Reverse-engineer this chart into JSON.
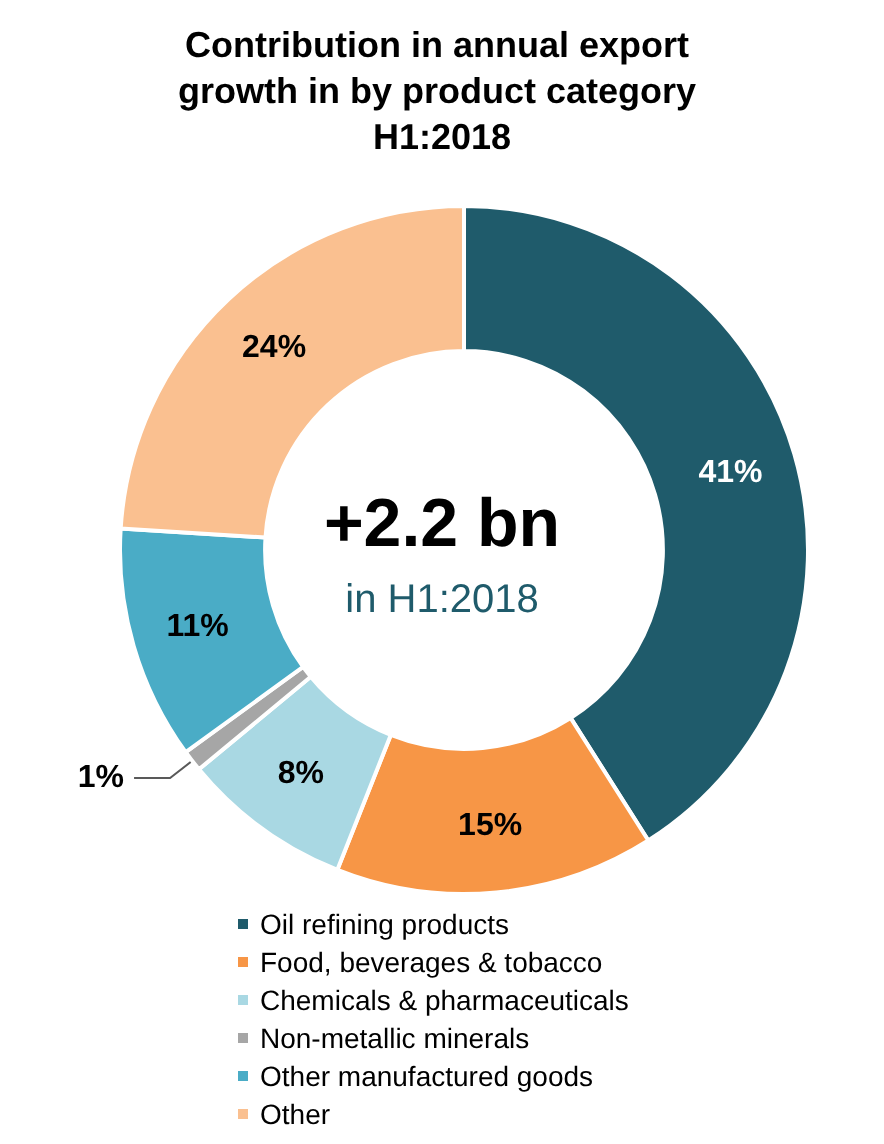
{
  "chart_data": {
    "type": "donut",
    "title": "Contribution in annual export growth in by product category H1:2018",
    "categories": [
      "Oil refining products",
      "Food, beverages & tobacco",
      "Chemicals & pharmaceuticals",
      "Non-metallic minerals",
      "Other manufactured goods",
      "Other"
    ],
    "values": [
      41,
      15,
      8,
      1,
      11,
      24
    ],
    "colors": [
      "#1f5b6b",
      "#f79646",
      "#a9d8e3",
      "#a6a6a6",
      "#4aacc6",
      "#fac090"
    ],
    "value_labels": [
      "41%",
      "15%",
      "8%",
      "1%",
      "11%",
      "24%"
    ],
    "legend": "bottom",
    "annotations": [
      "+2.2 bn",
      "in H1:2018"
    ]
  }
}
